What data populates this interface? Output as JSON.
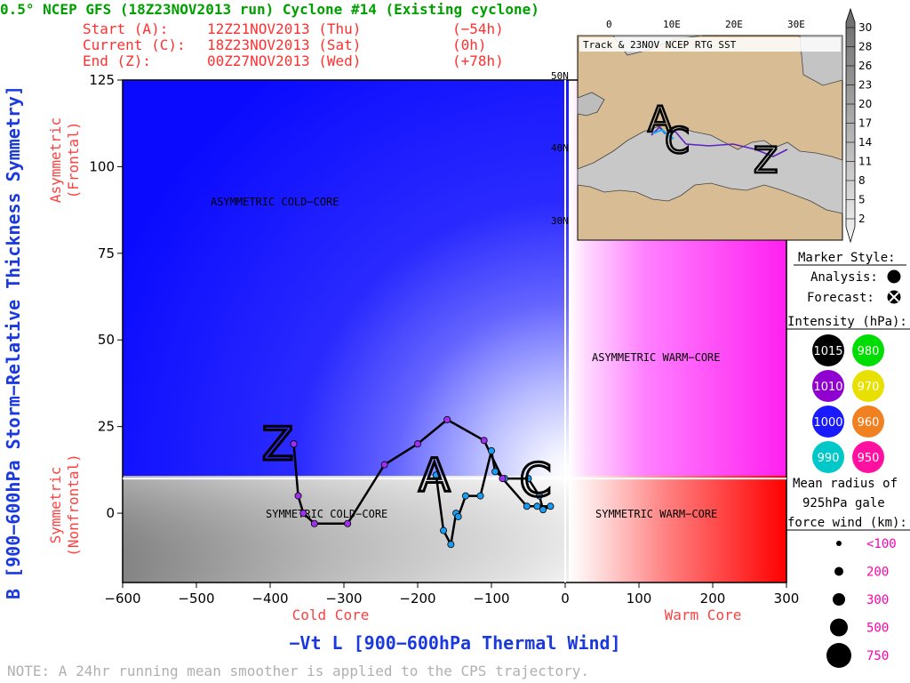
{
  "header": {
    "title": "0.5° NCEP GFS (18Z23NOV2013 run) Cyclone #14 (Existing cyclone)",
    "start_label": "Start (A):",
    "start_date": "12Z21NOV2013 (Thu)",
    "start_rel": "(−54h)",
    "current_label": "Current (C):",
    "current_date": "18Z23NOV2013 (Sat)",
    "current_rel": "(0h)",
    "end_label": "End (Z):",
    "end_date": "00Z27NOV2013 (Wed)",
    "end_rel": "(+78h)"
  },
  "note": "NOTE:  A 24hr running mean smoother is applied to the CPS trajectory.",
  "side_labels": {
    "asymmetric": "Asymmetric",
    "frontal": "(Frontal)",
    "symmetric": "Symmetric",
    "nonfrontal": "(Nonfrontal)",
    "cold_core": "Cold Core",
    "warm_core": "Warm Core"
  },
  "regions": {
    "asym_cold": "ASYMMETRIC COLD−CORE",
    "asym_warm": "ASYMMETRIC WARM−CORE",
    "sym_cold": "SYMMETRIC COLD−CORE",
    "sym_warm": "SYMMETRIC WARM−CORE"
  },
  "markers": {
    "start": "A",
    "current": "C",
    "end": "Z"
  },
  "inset": {
    "title": "Track & 23NOV NCEP RTG SST",
    "lon_labels": [
      "0",
      "10E",
      "20E",
      "30E"
    ],
    "lat_labels": [
      "50N",
      "40N",
      "30N"
    ],
    "sst_colorbar": [
      "30",
      "28",
      "26",
      "23",
      "20",
      "17",
      "14",
      "11",
      "8",
      "5",
      "2"
    ],
    "markers": {
      "start": "A",
      "current": "C",
      "end": "Z"
    }
  },
  "legend": {
    "marker_style_title": "Marker Style:",
    "analysis_label": "Analysis:",
    "forecast_label": "Forecast:",
    "intensity_title": "Intensity (hPa):",
    "intensity": [
      {
        "label": "1015",
        "color": "#000000"
      },
      {
        "label": "980",
        "color": "#00dd00"
      },
      {
        "label": "1010",
        "color": "#9000d0"
      },
      {
        "label": "970",
        "color": "#e8e000"
      },
      {
        "label": "1000",
        "color": "#1a1aff"
      },
      {
        "label": "960",
        "color": "#f08020"
      },
      {
        "label": "990",
        "color": "#00c8c8"
      },
      {
        "label": "950",
        "color": "#ff10a0"
      }
    ],
    "radius_title_1": "Mean radius of",
    "radius_title_2": "925hPa gale",
    "radius_title_3": "force wind (km):",
    "radius_items": [
      "<100",
      "200",
      "300",
      "500",
      "750"
    ]
  },
  "chart_data": {
    "type": "scatter",
    "title": "0.5° NCEP GFS (18Z23NOV2013 run) Cyclone #14 (Existing cyclone)",
    "xlabel": "−Vt L [900−600hPa Thermal Wind]",
    "ylabel": "B [900−600hPa Storm−Relative Thickness Symmetry]",
    "xlim": [
      -600,
      300
    ],
    "ylim": [
      -20,
      125
    ],
    "x_ticks": [
      -600,
      -500,
      -400,
      -300,
      -200,
      -100,
      0,
      100,
      200,
      300
    ],
    "x_tick_labels": [
      "−600",
      "−500",
      "−400",
      "−300",
      "−200",
      "−100",
      "0",
      "100",
      "200",
      "300"
    ],
    "y_ticks": [
      0,
      25,
      50,
      75,
      100,
      125
    ],
    "y_tick_labels": [
      "0",
      "25",
      "50",
      "75",
      "100",
      "125"
    ],
    "series": [
      {
        "points": [
          {
            "x": -175,
            "y": 11,
            "c": "#1a9cf0"
          },
          {
            "x": -165,
            "y": -5,
            "c": "#1a9cf0"
          },
          {
            "x": -155,
            "y": -9,
            "c": "#1a9cf0"
          },
          {
            "x": -148,
            "y": 0,
            "c": "#1a9cf0"
          },
          {
            "x": -145,
            "y": -1,
            "c": "#1a9cf0"
          },
          {
            "x": -135,
            "y": 5,
            "c": "#1a9cf0"
          },
          {
            "x": -115,
            "y": 5,
            "c": "#1a9cf0"
          },
          {
            "x": -100,
            "y": 18,
            "c": "#1a9cf0"
          },
          {
            "x": -95,
            "y": 12,
            "c": "#1a9cf0"
          },
          {
            "x": -82,
            "y": 10,
            "c": "#1a9cf0"
          },
          {
            "x": -50,
            "y": 10,
            "c": "#1a9cf0"
          },
          {
            "x": -35,
            "y": 5,
            "c": "#1a9cf0"
          },
          {
            "x": -30,
            "y": 1,
            "c": "#1a9cf0"
          },
          {
            "x": -20,
            "y": 2,
            "c": "#1a9cf0"
          },
          {
            "x": -38,
            "y": 2,
            "c": "#1a9cf0"
          },
          {
            "x": -52,
            "y": 2,
            "c": "#1a9cf0"
          },
          {
            "x": -85,
            "y": 10,
            "c": "#a030f0"
          },
          {
            "x": -110,
            "y": 21,
            "c": "#a030f0"
          },
          {
            "x": -160,
            "y": 27,
            "c": "#a030f0"
          },
          {
            "x": -200,
            "y": 20,
            "c": "#a030f0"
          },
          {
            "x": -245,
            "y": 14,
            "c": "#a030f0"
          },
          {
            "x": -295,
            "y": -3,
            "c": "#a030f0"
          },
          {
            "x": -340,
            "y": -3,
            "c": "#a030f0"
          },
          {
            "x": -355,
            "y": 0,
            "c": "#a030f0"
          },
          {
            "x": -362,
            "y": 5,
            "c": "#a030f0"
          },
          {
            "x": -368,
            "y": 20,
            "c": "#a030f0"
          }
        ]
      }
    ],
    "start_point": {
      "x": -175,
      "y": 11
    },
    "current_point": {
      "x": -50,
      "y": 10
    },
    "end_point": {
      "x": -368,
      "y": 20
    },
    "region_boundaries": {
      "x": 0,
      "y": 10
    },
    "grid": false,
    "legend_position": "right"
  }
}
